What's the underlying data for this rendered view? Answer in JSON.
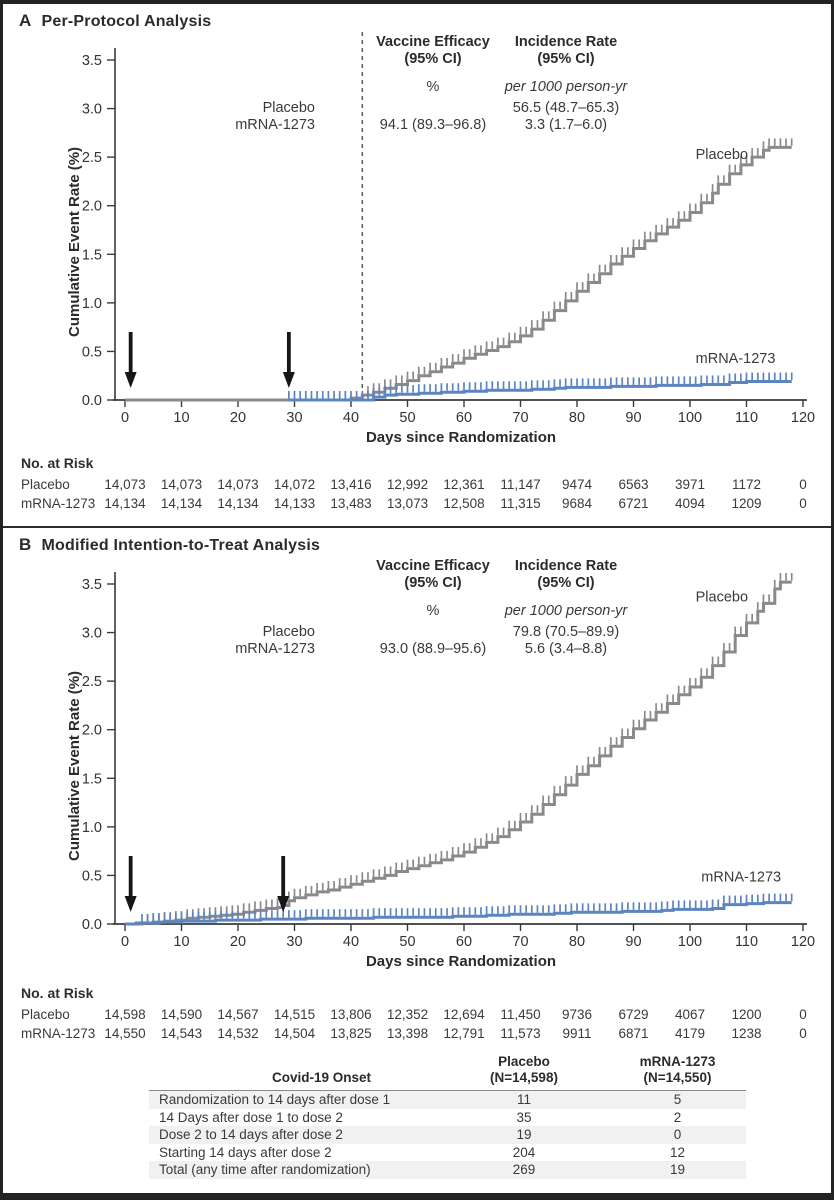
{
  "colors": {
    "placebo": "#8a8a8a",
    "mrna": "#5b84c0",
    "axis": "#3a3a3a",
    "arrow": "#161616",
    "dashed": "#5a5a5a",
    "row_shade": "#f1f1f1"
  },
  "onset_table": {
    "col_label_header": "Covid-19 Onset",
    "col1_header_line1": "Placebo",
    "col1_header_line2": "(N=14,598)",
    "col2_header_line1": "mRNA-1273",
    "col2_header_line2": "(N=14,550)",
    "rows": [
      {
        "label": "Randomization to 14 days after dose 1",
        "placebo": "11",
        "mrna": "5"
      },
      {
        "label": "14 Days after dose 1 to dose 2",
        "placebo": "35",
        "mrna": "2"
      },
      {
        "label": "Dose 2 to 14 days after dose 2",
        "placebo": "19",
        "mrna": "0"
      },
      {
        "label": "Starting 14 days after dose 2",
        "placebo": "204",
        "mrna": "12"
      },
      {
        "label": "Total (any time after randomization)",
        "placebo": "269",
        "mrna": "19"
      }
    ]
  },
  "chart_data": [
    {
      "type": "line",
      "panel": "A",
      "title": "Per-Protocol Analysis",
      "xlabel": "Days since Randomization",
      "ylabel": "Cumulative Event Rate (%)",
      "xlim": [
        0,
        120
      ],
      "ylim": [
        0,
        3.5
      ],
      "xticks": [
        0,
        10,
        20,
        30,
        40,
        50,
        60,
        70,
        80,
        90,
        100,
        110,
        120
      ],
      "yticks": [
        "0.0",
        "0.5",
        "1.0",
        "1.5",
        "2.0",
        "2.5",
        "3.0",
        "3.5"
      ],
      "dashed_line_day": 42,
      "arrow_days": [
        1,
        29
      ],
      "stats": {
        "col1_header_line1": "Vaccine Efficacy",
        "col1_header_line2": "(95% CI)",
        "col2_header_line1": "Incidence Rate",
        "col2_header_line2": "(95% CI)",
        "col1_unit": "%",
        "col2_unit": "per 1000 person-yr",
        "rows": [
          {
            "label": "Placebo",
            "ve": "",
            "ir": "56.5 (48.7–65.3)"
          },
          {
            "label": "mRNA-1273",
            "ve": "94.1 (89.3–96.8)",
            "ir": "3.3 (1.7–6.0)"
          }
        ]
      },
      "series": [
        {
          "name": "Placebo",
          "color": "#8a8a8a",
          "censor_from": 43,
          "label_day": 101,
          "label_pct": 2.48,
          "points": [
            [
              0,
              0
            ],
            [
              38,
              0
            ],
            [
              40,
              0.02
            ],
            [
              42,
              0.05
            ],
            [
              44,
              0.08
            ],
            [
              46,
              0.12
            ],
            [
              48,
              0.16
            ],
            [
              50,
              0.2
            ],
            [
              52,
              0.25
            ],
            [
              54,
              0.29
            ],
            [
              56,
              0.34
            ],
            [
              58,
              0.38
            ],
            [
              60,
              0.43
            ],
            [
              62,
              0.47
            ],
            [
              64,
              0.51
            ],
            [
              66,
              0.55
            ],
            [
              68,
              0.6
            ],
            [
              70,
              0.66
            ],
            [
              72,
              0.73
            ],
            [
              74,
              0.82
            ],
            [
              76,
              0.92
            ],
            [
              78,
              1.02
            ],
            [
              80,
              1.12
            ],
            [
              82,
              1.21
            ],
            [
              84,
              1.3
            ],
            [
              86,
              1.4
            ],
            [
              88,
              1.48
            ],
            [
              90,
              1.56
            ],
            [
              92,
              1.64
            ],
            [
              94,
              1.71
            ],
            [
              96,
              1.78
            ],
            [
              98,
              1.85
            ],
            [
              100,
              1.93
            ],
            [
              102,
              2.03
            ],
            [
              104,
              2.13
            ],
            [
              105,
              2.22
            ],
            [
              107,
              2.33
            ],
            [
              109,
              2.42
            ],
            [
              111,
              2.5
            ],
            [
              113,
              2.57
            ],
            [
              114,
              2.6
            ],
            [
              118,
              2.6
            ]
          ]
        },
        {
          "name": "mRNA-1273",
          "color": "#5b84c0",
          "censor_from": 29,
          "label_day": 101,
          "label_pct": 0.38,
          "points": [
            [
              29,
              0
            ],
            [
              43,
              0
            ],
            [
              44,
              0.03
            ],
            [
              46,
              0.05
            ],
            [
              48,
              0.06
            ],
            [
              52,
              0.07
            ],
            [
              56,
              0.08
            ],
            [
              60,
              0.09
            ],
            [
              64,
              0.1
            ],
            [
              68,
              0.1
            ],
            [
              72,
              0.11
            ],
            [
              76,
              0.12
            ],
            [
              78,
              0.13
            ],
            [
              82,
              0.13
            ],
            [
              86,
              0.14
            ],
            [
              90,
              0.14
            ],
            [
              94,
              0.15
            ],
            [
              98,
              0.15
            ],
            [
              102,
              0.16
            ],
            [
              106,
              0.16
            ],
            [
              107,
              0.18
            ],
            [
              110,
              0.19
            ],
            [
              118,
              0.19
            ]
          ]
        }
      ],
      "no_at_risk": {
        "header": "No. at Risk",
        "days": [
          0,
          10,
          20,
          30,
          40,
          50,
          60,
          70,
          80,
          90,
          100,
          110,
          120
        ],
        "rows": [
          {
            "label": "Placebo",
            "values": [
              "14,073",
              "14,073",
              "14,073",
              "14,072",
              "13,416",
              "12,992",
              "12,361",
              "11,147",
              "9474",
              "6563",
              "3971",
              "1172",
              "0"
            ]
          },
          {
            "label": "mRNA-1273",
            "values": [
              "14,134",
              "14,134",
              "14,134",
              "14,133",
              "13,483",
              "13,073",
              "12,508",
              "11,315",
              "9684",
              "6721",
              "4094",
              "1209",
              "0"
            ]
          }
        ]
      }
    },
    {
      "type": "line",
      "panel": "B",
      "title": "Modified Intention-to-Treat Analysis",
      "xlabel": "Days since Randomization",
      "ylabel": "Cumulative Event Rate (%)",
      "xlim": [
        0,
        120
      ],
      "ylim": [
        0,
        3.5
      ],
      "xticks": [
        0,
        10,
        20,
        30,
        40,
        50,
        60,
        70,
        80,
        90,
        100,
        110,
        120
      ],
      "yticks": [
        "0.0",
        "0.5",
        "1.0",
        "1.5",
        "2.0",
        "2.5",
        "3.0",
        "3.5"
      ],
      "dashed_line_day": null,
      "arrow_days": [
        1,
        28
      ],
      "stats": {
        "col1_header_line1": "Vaccine Efficacy",
        "col1_header_line2": "(95% CI)",
        "col2_header_line1": "Incidence Rate",
        "col2_header_line2": "(95% CI)",
        "col1_unit": "%",
        "col2_unit": "per 1000 person-yr",
        "rows": [
          {
            "label": "Placebo",
            "ve": "",
            "ir": "79.8 (70.5–89.9)"
          },
          {
            "label": "mRNA-1273",
            "ve": "93.0 (88.9–95.6)",
            "ir": "5.6 (3.4–8.8)"
          }
        ]
      },
      "series": [
        {
          "name": "Placebo",
          "color": "#8a8a8a",
          "censor_from": 4,
          "label_day": 101,
          "label_pct": 3.32,
          "points": [
            [
              0,
              0
            ],
            [
              3,
              0.01
            ],
            [
              5,
              0.02
            ],
            [
              7,
              0.03
            ],
            [
              9,
              0.04
            ],
            [
              11,
              0.06
            ],
            [
              13,
              0.07
            ],
            [
              15,
              0.08
            ],
            [
              17,
              0.09
            ],
            [
              19,
              0.1
            ],
            [
              21,
              0.12
            ],
            [
              23,
              0.14
            ],
            [
              25,
              0.16
            ],
            [
              27,
              0.17
            ],
            [
              28,
              0.19
            ],
            [
              29,
              0.24
            ],
            [
              30,
              0.27
            ],
            [
              32,
              0.3
            ],
            [
              34,
              0.33
            ],
            [
              36,
              0.35
            ],
            [
              38,
              0.38
            ],
            [
              40,
              0.41
            ],
            [
              42,
              0.44
            ],
            [
              44,
              0.47
            ],
            [
              46,
              0.5
            ],
            [
              48,
              0.54
            ],
            [
              50,
              0.57
            ],
            [
              52,
              0.6
            ],
            [
              54,
              0.63
            ],
            [
              56,
              0.66
            ],
            [
              58,
              0.7
            ],
            [
              60,
              0.74
            ],
            [
              62,
              0.79
            ],
            [
              64,
              0.84
            ],
            [
              66,
              0.9
            ],
            [
              68,
              0.97
            ],
            [
              70,
              1.05
            ],
            [
              72,
              1.13
            ],
            [
              74,
              1.23
            ],
            [
              76,
              1.33
            ],
            [
              78,
              1.43
            ],
            [
              80,
              1.54
            ],
            [
              82,
              1.63
            ],
            [
              84,
              1.73
            ],
            [
              86,
              1.83
            ],
            [
              88,
              1.92
            ],
            [
              90,
              2.01
            ],
            [
              92,
              2.1
            ],
            [
              94,
              2.18
            ],
            [
              96,
              2.27
            ],
            [
              98,
              2.36
            ],
            [
              100,
              2.44
            ],
            [
              102,
              2.54
            ],
            [
              104,
              2.66
            ],
            [
              106,
              2.8
            ],
            [
              108,
              2.97
            ],
            [
              110,
              3.1
            ],
            [
              112,
              3.22
            ],
            [
              113,
              3.3
            ],
            [
              115,
              3.45
            ],
            [
              116,
              3.52
            ],
            [
              118,
              3.52
            ]
          ]
        },
        {
          "name": "mRNA-1273",
          "color": "#5b84c0",
          "censor_from": 3,
          "label_day": 102,
          "label_pct": 0.44,
          "points": [
            [
              0,
              0
            ],
            [
              2,
              0.01
            ],
            [
              6,
              0.02
            ],
            [
              10,
              0.03
            ],
            [
              14,
              0.03
            ],
            [
              16,
              0.04
            ],
            [
              20,
              0.04
            ],
            [
              24,
              0.05
            ],
            [
              28,
              0.05
            ],
            [
              32,
              0.06
            ],
            [
              36,
              0.06
            ],
            [
              44,
              0.07
            ],
            [
              52,
              0.07
            ],
            [
              58,
              0.08
            ],
            [
              62,
              0.08
            ],
            [
              64,
              0.09
            ],
            [
              68,
              0.1
            ],
            [
              72,
              0.1
            ],
            [
              76,
              0.11
            ],
            [
              79,
              0.12
            ],
            [
              84,
              0.12
            ],
            [
              88,
              0.13
            ],
            [
              92,
              0.13
            ],
            [
              95,
              0.14
            ],
            [
              97,
              0.15
            ],
            [
              100,
              0.15
            ],
            [
              104,
              0.16
            ],
            [
              106,
              0.2
            ],
            [
              110,
              0.21
            ],
            [
              113,
              0.22
            ],
            [
              118,
              0.22
            ]
          ]
        }
      ],
      "no_at_risk": {
        "header": "No. at Risk",
        "days": [
          0,
          10,
          20,
          30,
          40,
          50,
          60,
          70,
          80,
          90,
          100,
          110,
          120
        ],
        "rows": [
          {
            "label": "Placebo",
            "values": [
              "14,598",
              "14,590",
              "14,567",
              "14,515",
              "13,806",
              "12,352",
              "12,694",
              "11,450",
              "9736",
              "6729",
              "4067",
              "1200",
              "0"
            ]
          },
          {
            "label": "mRNA-1273",
            "values": [
              "14,550",
              "14,543",
              "14,532",
              "14,504",
              "13,825",
              "13,398",
              "12,791",
              "11,573",
              "9911",
              "6871",
              "4179",
              "1238",
              "0"
            ]
          }
        ]
      }
    }
  ]
}
